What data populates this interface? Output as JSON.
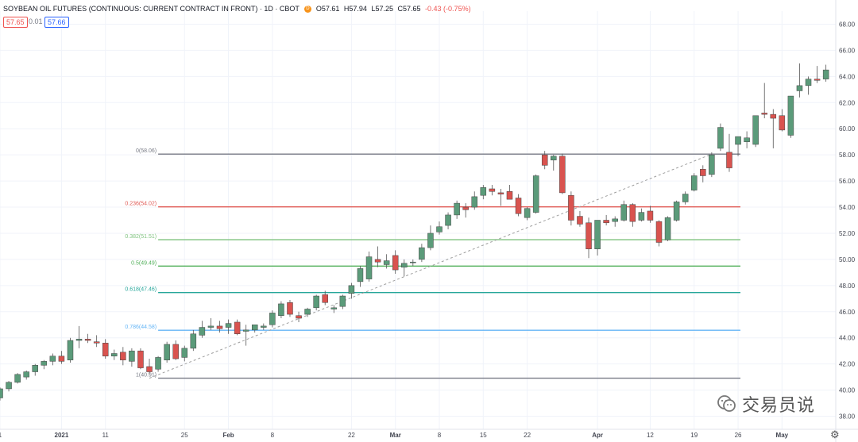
{
  "header": {
    "symbol": "SOYBEAN OIL FUTURES (CONTINUOUS: CURRENT CONTRACT IN FRONT) · 1D · CBOT",
    "badge": "D",
    "open": "O57.61",
    "high": "H57.94",
    "low": "L57.25",
    "close": "C57.65",
    "change": "-0.43 (-0.75%)",
    "bid": "57.65",
    "spread": "0.01",
    "ask": "57.66"
  },
  "watermark": "交易员说",
  "colors": {
    "up": "#5b9b7a",
    "down": "#d9534f",
    "grid": "#f0f3fa",
    "axis_text": "#434651"
  },
  "chart_data": {
    "type": "candlestick",
    "title": "SOYBEAN OIL FUTURES (CONTINUOUS: CURRENT CONTRACT IN FRONT)",
    "ylim": [
      37,
      69
    ],
    "y_ticks": [
      "38.00",
      "40.00",
      "42.00",
      "44.00",
      "46.00",
      "48.00",
      "50.00",
      "52.00",
      "54.00",
      "56.00",
      "58.00",
      "60.00",
      "62.00",
      "64.00",
      "66.00",
      "68.00"
    ],
    "x_ticks": [
      {
        "label": "1",
        "i": 0
      },
      {
        "label": "2021",
        "i": 7
      },
      {
        "label": "11",
        "i": 12
      },
      {
        "label": "25",
        "i": 21
      },
      {
        "label": "Feb",
        "i": 26
      },
      {
        "label": "8",
        "i": 31
      },
      {
        "label": "22",
        "i": 40
      },
      {
        "label": "Mar",
        "i": 45
      },
      {
        "label": "8",
        "i": 50
      },
      {
        "label": "15",
        "i": 55
      },
      {
        "label": "22",
        "i": 60
      },
      {
        "label": "Apr",
        "i": 68
      },
      {
        "label": "12",
        "i": 74
      },
      {
        "label": "19",
        "i": 79
      },
      {
        "label": "26",
        "i": 84
      },
      {
        "label": "May",
        "i": 89
      }
    ],
    "candles": [
      [
        39.4,
        40.2,
        39.2,
        40.1
      ],
      [
        40.1,
        40.7,
        39.9,
        40.6
      ],
      [
        40.6,
        41.3,
        40.5,
        41.2
      ],
      [
        41.0,
        41.5,
        40.8,
        41.4
      ],
      [
        41.4,
        42.0,
        41.1,
        41.9
      ],
      [
        41.9,
        42.3,
        41.6,
        42.2
      ],
      [
        42.2,
        42.8,
        41.9,
        42.6
      ],
      [
        42.6,
        43.0,
        42.0,
        42.2
      ],
      [
        42.3,
        44.0,
        42.1,
        43.8
      ],
      [
        43.8,
        44.9,
        43.2,
        43.9
      ],
      [
        43.9,
        44.3,
        43.6,
        43.8
      ],
      [
        43.7,
        44.2,
        43.3,
        43.6
      ],
      [
        43.6,
        43.9,
        42.4,
        42.6
      ],
      [
        42.6,
        43.1,
        42.3,
        42.8
      ],
      [
        42.9,
        43.3,
        41.9,
        42.3
      ],
      [
        42.2,
        43.2,
        41.8,
        43.0
      ],
      [
        43.0,
        43.2,
        41.6,
        41.7
      ],
      [
        41.8,
        42.4,
        41.2,
        41.4
      ],
      [
        41.6,
        42.6,
        41.4,
        42.5
      ],
      [
        42.3,
        43.7,
        42.1,
        43.5
      ],
      [
        43.5,
        43.8,
        42.3,
        42.4
      ],
      [
        42.5,
        43.4,
        42.2,
        43.2
      ],
      [
        43.2,
        44.6,
        43.0,
        44.3
      ],
      [
        44.2,
        45.3,
        44.0,
        44.8
      ],
      [
        44.8,
        45.5,
        44.6,
        44.9
      ],
      [
        44.9,
        45.3,
        44.4,
        44.7
      ],
      [
        44.8,
        45.4,
        44.3,
        45.1
      ],
      [
        45.2,
        45.4,
        44.2,
        44.3
      ],
      [
        44.5,
        45.0,
        43.4,
        44.6
      ],
      [
        44.6,
        45.0,
        44.4,
        45.0
      ],
      [
        44.8,
        45.1,
        44.6,
        44.9
      ],
      [
        45.0,
        46.1,
        44.8,
        45.9
      ],
      [
        45.7,
        46.8,
        45.5,
        46.6
      ],
      [
        46.7,
        46.9,
        45.6,
        45.8
      ],
      [
        45.7,
        46.0,
        45.2,
        45.5
      ],
      [
        45.8,
        46.3,
        45.6,
        46.2
      ],
      [
        46.3,
        47.3,
        46.1,
        47.2
      ],
      [
        47.3,
        47.6,
        46.5,
        46.7
      ],
      [
        46.2,
        46.5,
        45.9,
        46.3
      ],
      [
        46.4,
        47.3,
        46.2,
        47.2
      ],
      [
        47.4,
        48.2,
        47.0,
        48.0
      ],
      [
        48.3,
        49.5,
        47.9,
        49.3
      ],
      [
        48.5,
        50.6,
        48.3,
        50.2
      ],
      [
        50.0,
        51.0,
        49.4,
        49.8
      ],
      [
        49.6,
        50.4,
        49.3,
        49.9
      ],
      [
        50.3,
        50.7,
        48.9,
        49.2
      ],
      [
        49.4,
        50.0,
        48.7,
        49.7
      ],
      [
        49.8,
        50.0,
        49.5,
        49.8
      ],
      [
        50.0,
        51.2,
        49.8,
        50.9
      ],
      [
        50.9,
        52.6,
        50.7,
        52.0
      ],
      [
        52.1,
        52.9,
        51.9,
        52.5
      ],
      [
        52.6,
        53.6,
        52.3,
        53.4
      ],
      [
        53.4,
        54.5,
        53.1,
        54.3
      ],
      [
        54.0,
        54.3,
        53.2,
        53.8
      ],
      [
        54.0,
        55.2,
        53.8,
        54.8
      ],
      [
        54.9,
        55.7,
        54.6,
        55.5
      ],
      [
        55.4,
        55.7,
        54.9,
        55.2
      ],
      [
        55.1,
        55.4,
        54.1,
        55.0
      ],
      [
        55.2,
        55.7,
        54.7,
        54.6
      ],
      [
        54.7,
        55.0,
        53.3,
        53.5
      ],
      [
        53.2,
        54.0,
        53.0,
        53.9
      ],
      [
        53.6,
        56.5,
        53.5,
        56.4
      ],
      [
        58.0,
        58.3,
        56.9,
        57.2
      ],
      [
        57.6,
        58.0,
        56.8,
        57.9
      ],
      [
        57.9,
        58.1,
        55.0,
        55.1
      ],
      [
        54.9,
        55.2,
        52.6,
        53.0
      ],
      [
        53.3,
        53.7,
        52.5,
        52.7
      ],
      [
        52.8,
        53.2,
        50.1,
        50.8
      ],
      [
        50.8,
        53.0,
        50.3,
        53.0
      ],
      [
        53.0,
        53.4,
        52.6,
        52.8
      ],
      [
        52.9,
        53.3,
        52.5,
        53.1
      ],
      [
        53.0,
        54.5,
        52.9,
        54.2
      ],
      [
        54.2,
        54.3,
        52.5,
        52.9
      ],
      [
        53.0,
        53.9,
        52.9,
        53.6
      ],
      [
        53.7,
        54.1,
        52.8,
        53.0
      ],
      [
        52.9,
        53.0,
        51.0,
        51.3
      ],
      [
        51.5,
        53.3,
        51.4,
        53.2
      ],
      [
        53.0,
        54.5,
        52.9,
        54.4
      ],
      [
        54.4,
        55.2,
        54.2,
        55.0
      ],
      [
        55.3,
        56.6,
        55.2,
        56.4
      ],
      [
        56.9,
        57.2,
        55.9,
        56.4
      ],
      [
        56.5,
        58.2,
        56.3,
        58.0
      ],
      [
        58.5,
        60.4,
        58.3,
        60.1
      ],
      [
        58.2,
        59.6,
        56.7,
        57.0
      ],
      [
        58.8,
        59.3,
        57.9,
        59.4
      ],
      [
        59.0,
        59.8,
        58.5,
        59.3
      ],
      [
        58.8,
        61.0,
        58.6,
        61.0
      ],
      [
        61.2,
        63.5,
        60.8,
        61.1
      ],
      [
        61.1,
        61.5,
        58.5,
        60.8
      ],
      [
        61.0,
        61.5,
        59.8,
        59.9
      ],
      [
        59.5,
        62.5,
        59.3,
        62.5
      ],
      [
        62.9,
        65.0,
        62.4,
        63.3
      ],
      [
        63.3,
        64.0,
        62.6,
        63.8
      ],
      [
        63.8,
        64.8,
        63.5,
        63.7
      ],
      [
        63.8,
        64.9,
        63.6,
        64.5
      ]
    ],
    "fibonacci": [
      {
        "label": "0(58.06)",
        "value": 58.06,
        "color": "#787b86"
      },
      {
        "label": "0.236(54.02)",
        "value": 54.02,
        "color": "#e05a55"
      },
      {
        "label": "0.382(51.51)",
        "value": 51.51,
        "color": "#7ec27e"
      },
      {
        "label": "0.5(49.49)",
        "value": 49.49,
        "color": "#52b05a"
      },
      {
        "label": "0.618(47.46)",
        "value": 47.46,
        "color": "#26a69a"
      },
      {
        "label": "0.786(44.58)",
        "value": 44.58,
        "color": "#64b5f6"
      },
      {
        "label": "1(40.91)",
        "value": 40.91,
        "color": "#787b86"
      }
    ],
    "trend_line": {
      "from": {
        "i": 17,
        "v": 40.91
      },
      "to": {
        "i": 81,
        "v": 58.06
      }
    }
  }
}
